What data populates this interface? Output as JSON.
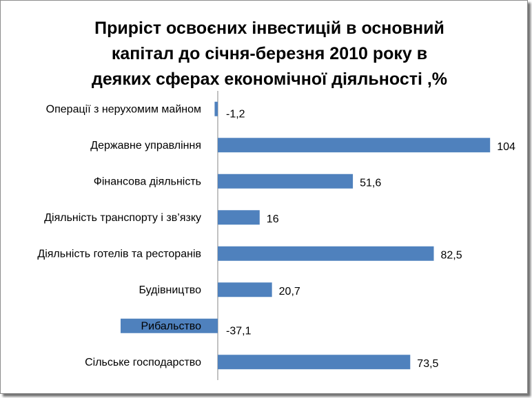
{
  "chart_data": {
    "type": "bar",
    "orientation": "horizontal",
    "title": [
      "Приріст освоєних інвестицій в основний",
      "капітал до січня-березня 2010 року в",
      "деяких сферах економічної діяльності ,%"
    ],
    "categories": [
      "Операції з нерухомим майном",
      "Державне управління",
      "Фінансова діяльність",
      "Діяльність транспорту і зв’язку",
      "Діяльність готелів та ресторанів",
      "Будівництво",
      "Рибальство",
      "Сільське господарство"
    ],
    "values": [
      -1.2,
      104,
      51.6,
      16,
      82.5,
      20.7,
      -37.1,
      73.5
    ],
    "value_labels": [
      "-1,2",
      "104",
      "51,6",
      "16",
      "82,5",
      "20,7",
      "-37,1",
      "73,5"
    ],
    "bar_color": "#4f81bd",
    "grid": false,
    "legend": "none"
  }
}
